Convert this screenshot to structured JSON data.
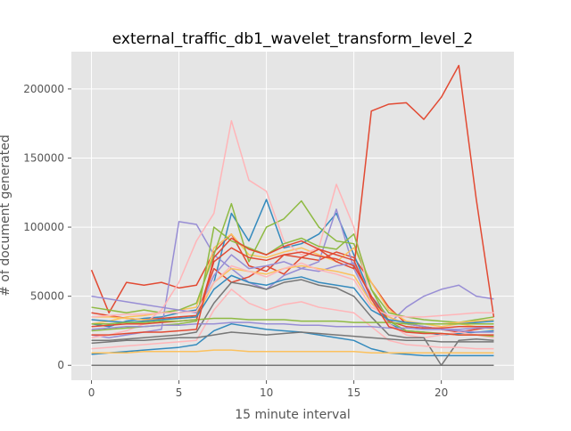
{
  "chart_data": {
    "type": "line",
    "title": "external_traffic_db1_wavelet_transform_level_2",
    "xlabel": "15 minute interval",
    "ylabel": "# of document generated",
    "xlim": [
      -1.15,
      24.15
    ],
    "ylim": [
      -10800,
      227000
    ],
    "x_ticks": [
      "0",
      "5",
      "10",
      "15",
      "20"
    ],
    "y_ticks": [
      "0",
      "50000",
      "100000",
      "150000",
      "200000"
    ],
    "grid": true,
    "legend": "none",
    "style": "ggplot",
    "x": [
      0,
      1,
      2,
      3,
      4,
      5,
      6,
      7,
      8,
      9,
      10,
      11,
      12,
      13,
      14,
      15,
      16,
      17,
      18,
      19,
      20,
      21,
      22,
      23
    ],
    "colors": [
      "#E24A33",
      "#348ABD",
      "#988ED5",
      "#777777",
      "#FBC15E",
      "#8EBA42",
      "#FFB5B8"
    ],
    "series": [
      {
        "values": [
          69000,
          38000,
          60000,
          58000,
          60000,
          56000,
          58000,
          82000,
          95000,
          72000,
          68000,
          80000,
          78000,
          76000,
          82000,
          78000,
          60000,
          42000,
          30000,
          28000,
          26000,
          24000,
          26000,
          28000
        ]
      },
      {
        "values": [
          30000,
          28000,
          32000,
          34000,
          35000,
          38000,
          40000,
          60000,
          110000,
          90000,
          120000,
          85000,
          88000,
          95000,
          110000,
          80000,
          50000,
          30000,
          25000,
          24000,
          22000,
          23000,
          24000,
          25000
        ]
      },
      {
        "values": [
          22000,
          20000,
          22000,
          24000,
          26000,
          104000,
          102000,
          80000,
          70000,
          60000,
          55000,
          65000,
          70000,
          75000,
          113000,
          70000,
          45000,
          30000,
          42000,
          50000,
          55000,
          58000,
          50000,
          48000
        ]
      },
      {
        "values": [
          0,
          0,
          0,
          0,
          0,
          0,
          0,
          0,
          0,
          0,
          0,
          0,
          0,
          0,
          0,
          0,
          0,
          0,
          0,
          0,
          0,
          0,
          0,
          0
        ]
      },
      {
        "values": [
          30000,
          32000,
          35000,
          36000,
          38000,
          40000,
          42000,
          85000,
          95000,
          80000,
          78000,
          82000,
          85000,
          80000,
          75000,
          85000,
          60000,
          40000,
          32000,
          30000,
          28000,
          30000,
          28000,
          26000
        ]
      },
      {
        "values": [
          42000,
          40000,
          38000,
          40000,
          38000,
          40000,
          45000,
          80000,
          117000,
          75000,
          100000,
          106000,
          119000,
          100000,
          90000,
          88000,
          55000,
          38000,
          35000,
          33000,
          32000,
          31000,
          33000,
          35000
        ]
      },
      {
        "values": [
          20000,
          22000,
          25000,
          30000,
          40000,
          60000,
          90000,
          110000,
          177000,
          134000,
          126000,
          90000,
          80000,
          85000,
          131000,
          100000,
          45000,
          30000,
          22000,
          20000,
          22000,
          24000,
          22000,
          20000
        ]
      },
      {
        "values": [
          38000,
          36000,
          34000,
          33000,
          34000,
          35000,
          36000,
          70000,
          60000,
          64000,
          72000,
          66000,
          78000,
          84000,
          75000,
          70000,
          184000,
          189000,
          190000,
          178000,
          194000,
          217000,
          120000,
          35000
        ]
      },
      {
        "values": [
          8000,
          9000,
          10000,
          11000,
          12000,
          13000,
          15000,
          25000,
          30000,
          28000,
          26000,
          25000,
          24000,
          22000,
          20000,
          18000,
          12000,
          9000,
          8000,
          7000,
          7000,
          7000,
          7000,
          7000
        ]
      },
      {
        "values": [
          50000,
          48000,
          46000,
          44000,
          42000,
          40000,
          38000,
          65000,
          80000,
          70000,
          72000,
          75000,
          70000,
          68000,
          72000,
          74000,
          50000,
          35000,
          30000,
          28000,
          26000,
          25000,
          24000,
          24000
        ]
      },
      {
        "values": [
          18000,
          18000,
          19000,
          20000,
          21000,
          22000,
          24000,
          45000,
          60000,
          58000,
          55000,
          60000,
          62000,
          58000,
          56000,
          50000,
          35000,
          22000,
          20000,
          20000,
          0,
          18000,
          19000,
          18000
        ]
      },
      {
        "values": [
          35000,
          35000,
          34000,
          33000,
          33000,
          34000,
          35000,
          60000,
          70000,
          68000,
          66000,
          70000,
          72000,
          70000,
          68000,
          65000,
          45000,
          35000,
          30000,
          30000,
          30000,
          31000,
          32000,
          33000
        ]
      },
      {
        "values": [
          25000,
          26000,
          27000,
          28000,
          29000,
          30000,
          32000,
          100000,
          90000,
          85000,
          80000,
          88000,
          92000,
          86000,
          84000,
          95000,
          55000,
          32000,
          25000,
          24000,
          23000,
          22000,
          22000,
          21000
        ]
      },
      {
        "values": [
          12000,
          13000,
          14000,
          15000,
          16000,
          17000,
          18000,
          40000,
          55000,
          45000,
          40000,
          44000,
          46000,
          42000,
          40000,
          38000,
          28000,
          18000,
          15000,
          14000,
          13000,
          13000,
          12000,
          12000
        ]
      },
      {
        "values": [
          28000,
          29000,
          30000,
          30000,
          31000,
          32000,
          33000,
          75000,
          85000,
          78000,
          76000,
          80000,
          82000,
          79000,
          77000,
          72000,
          50000,
          32000,
          28000,
          27000,
          27000,
          28000,
          28000,
          28000
        ]
      },
      {
        "values": [
          33000,
          32000,
          31000,
          32000,
          33000,
          34000,
          35000,
          55000,
          65000,
          60000,
          58000,
          62000,
          64000,
          60000,
          58000,
          56000,
          40000,
          33000,
          31000,
          30000,
          30000,
          30000,
          31000,
          32000
        ]
      },
      {
        "values": [
          26000,
          27000,
          28000,
          28000,
          29000,
          29000,
          30000,
          30000,
          31000,
          31000,
          30000,
          30000,
          29000,
          29000,
          28000,
          28000,
          28000,
          27000,
          27000,
          26000,
          26000,
          26000,
          27000,
          27000
        ]
      },
      {
        "values": [
          16000,
          17000,
          18000,
          18000,
          19000,
          20000,
          20000,
          22000,
          24000,
          23000,
          22000,
          23000,
          24000,
          23000,
          22000,
          21000,
          20000,
          19000,
          18000,
          18000,
          17000,
          17000,
          17000,
          17000
        ]
      },
      {
        "values": [
          9000,
          9000,
          9000,
          10000,
          10000,
          10000,
          10000,
          11000,
          11000,
          10000,
          10000,
          10000,
          10000,
          10000,
          10000,
          10000,
          9000,
          9000,
          9000,
          9000,
          9000,
          9000,
          9000,
          9000
        ]
      },
      {
        "values": [
          30000,
          30000,
          31000,
          31000,
          32000,
          32000,
          33000,
          34000,
          34000,
          33000,
          33000,
          33000,
          32000,
          32000,
          32000,
          31000,
          31000,
          31000,
          30000,
          30000,
          30000,
          30000,
          30000,
          30000
        ]
      },
      {
        "values": [
          35000,
          36000,
          37000,
          37000,
          38000,
          38000,
          39000,
          60000,
          72000,
          68000,
          64000,
          70000,
          74000,
          69000,
          66000,
          62000,
          42000,
          36000,
          35000,
          35000,
          36000,
          37000,
          38000,
          38000
        ]
      },
      {
        "values": [
          22000,
          22000,
          23000,
          24000,
          24000,
          25000,
          26000,
          78000,
          92000,
          84000,
          80000,
          86000,
          90000,
          84000,
          80000,
          76000,
          48000,
          28000,
          24000,
          23000,
          23000,
          22000,
          22000,
          22000
        ]
      }
    ]
  }
}
